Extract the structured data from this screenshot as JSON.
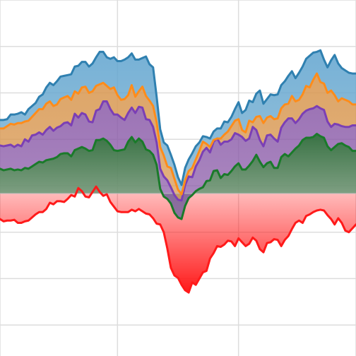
{
  "chart_data": {
    "type": "area",
    "title": "",
    "xlabel": "",
    "ylabel": "",
    "x": [
      0,
      1,
      2,
      3,
      4,
      5,
      6,
      7,
      8,
      9,
      10,
      11,
      12,
      13,
      14,
      15,
      16,
      17,
      18,
      19,
      20,
      21,
      22,
      23,
      24,
      25,
      26,
      27,
      28,
      29,
      30,
      31,
      32,
      33,
      34,
      35,
      36,
      37,
      38,
      39,
      40,
      41,
      42,
      43,
      44,
      45,
      46,
      47,
      48,
      49,
      50,
      51,
      52,
      53,
      54,
      55,
      56,
      57,
      58,
      59,
      60,
      61,
      62,
      63,
      64,
      65,
      66,
      67,
      68,
      69,
      70,
      71,
      72,
      73,
      74,
      75,
      76,
      77,
      78,
      79,
      80,
      81,
      82,
      83,
      84,
      85,
      86,
      87,
      88,
      89,
      90,
      91,
      92,
      93,
      94,
      95,
      96,
      97,
      98,
      99,
      100
    ],
    "xlim": [
      0,
      100
    ],
    "ylim": [
      -210,
      250
    ],
    "xgrid": [
      0,
      33,
      67,
      100
    ],
    "ygrid": [
      -230,
      -170,
      -110,
      -50,
      10,
      70,
      130,
      190,
      250
    ],
    "baseline": 0,
    "colors": {
      "s1": "#1a7a2a",
      "s2": "#7b3fb5",
      "s3": "#ff8c1a",
      "s4": "#2f80b0",
      "neg": "#ff1a1a",
      "grid": "#dddddd",
      "zero": "#bbbbbb"
    },
    "series": [
      {
        "values": [
          -33,
          -36,
          -35,
          -35,
          -34,
          -38,
          -38,
          -36,
          -35,
          -31,
          -27,
          -24,
          -24,
          -20,
          -12,
          -14,
          -10,
          -10,
          -11,
          -7,
          -2,
          -4,
          7,
          3,
          -4,
          -5,
          2,
          9,
          2,
          -3,
          -1,
          -11,
          -17,
          -23,
          -24,
          -24,
          -24,
          -21,
          -23,
          -20,
          -23,
          -26,
          -27,
          -32,
          -39,
          -40,
          -50,
          -71,
          -96,
          -106,
          -109,
          -118,
          -125,
          -128,
          -115,
          -118,
          -110,
          -102,
          -100,
          -84,
          -77,
          -68,
          -69,
          -66,
          -61,
          -62,
          -68,
          -58,
          -63,
          -68,
          -65,
          -57,
          -61,
          -72,
          -76,
          -64,
          -63,
          -59,
          -60,
          -68,
          -60,
          -55,
          -46,
          -38,
          -35,
          -38,
          -29,
          -27,
          -24,
          -22,
          -21,
          -22,
          -28,
          -33,
          -40,
          -32,
          -38,
          -48,
          -50,
          -45,
          -40
        ]
      },
      {
        "values": [
          32,
          30,
          31,
          32,
          30,
          31,
          30,
          33,
          32,
          35,
          38,
          41,
          40,
          43,
          44,
          45,
          47,
          51,
          52,
          52,
          48,
          56,
          58,
          60,
          58,
          55,
          56,
          69,
          69,
          71,
          68,
          63,
          56,
          55,
          56,
          57,
          67,
          73,
          66,
          71,
          67,
          57,
          55,
          50,
          37,
          6,
          -4,
          -7,
          -13,
          -25,
          -31,
          -33,
          -16,
          -6,
          -2,
          3,
          6,
          8,
          16,
          17,
          29,
          30,
          20,
          25,
          24,
          29,
          35,
          39,
          31,
          31,
          36,
          42,
          50,
          41,
          34,
          39,
          41,
          33,
          33,
          47,
          51,
          48,
          53,
          58,
          62,
          69,
          72,
          72,
          73,
          77,
          74,
          72,
          61,
          56,
          60,
          64,
          65,
          62,
          60,
          55,
          55
        ]
      },
      {
        "values": [
          62,
          61,
          62,
          63,
          60,
          63,
          61,
          70,
          67,
          75,
          76,
          79,
          76,
          82,
          86,
          81,
          85,
          87,
          91,
          92,
          88,
          103,
          98,
          104,
          102,
          93,
          92,
          107,
          109,
          119,
          119,
          109,
          102,
          102,
          98,
          95,
          104,
          111,
          104,
          112,
          111,
          96,
          95,
          86,
          66,
          32,
          22,
          17,
          8,
          -2,
          -8,
          -9,
          11,
          22,
          21,
          35,
          43,
          54,
          59,
          53,
          67,
          71,
          63,
          67,
          67,
          70,
          78,
          76,
          73,
          68,
          71,
          86,
          82,
          69,
          61,
          75,
          76,
          71,
          67,
          85,
          92,
          97,
          97,
          91,
          96,
          103,
          107,
          109,
          110,
          113,
          110,
          108,
          93,
          86,
          90,
          89,
          87,
          86,
          86,
          88,
          88
        ]
      },
      {
        "values": [
          84,
          84,
          87,
          90,
          89,
          91,
          91,
          93,
          94,
          99,
          104,
          109,
          109,
          116,
          119,
          113,
          115,
          122,
          124,
          126,
          121,
          132,
          129,
          137,
          138,
          130,
          132,
          139,
          141,
          143,
          139,
          135,
          137,
          127,
          121,
          122,
          127,
          140,
          125,
          132,
          138,
          126,
          120,
          113,
          92,
          60,
          49,
          35,
          33,
          19,
          5,
          -1,
          17,
          29,
          33,
          44,
          55,
          67,
          64,
          60,
          69,
          71,
          71,
          76,
          80,
          87,
          94,
          96,
          82,
          79,
          94,
          92,
          99,
          100,
          91,
          98,
          100,
          96,
          97,
          110,
          115,
          116,
          126,
          119,
          121,
          128,
          139,
          137,
          147,
          155,
          144,
          142,
          130,
          133,
          127,
          119,
          123,
          121,
          119,
          115,
          115
        ]
      },
      {
        "values": [
          95,
          95,
          96,
          102,
          102,
          103,
          105,
          102,
          109,
          113,
          117,
          125,
          128,
          137,
          143,
          140,
          145,
          151,
          152,
          153,
          154,
          164,
          165,
          170,
          170,
          164,
          168,
          176,
          183,
          183,
          176,
          174,
          176,
          171,
          171,
          173,
          176,
          181,
          173,
          173,
          175,
          177,
          167,
          163,
          125,
          83,
          66,
          62,
          50,
          37,
          21,
          11,
          33,
          44,
          52,
          61,
          66,
          74,
          73,
          71,
          80,
          84,
          84,
          93,
          92,
          99,
          109,
          118,
          104,
          108,
          120,
          118,
          129,
          133,
          116,
          122,
          128,
          127,
          128,
          140,
          145,
          152,
          158,
          149,
          156,
          164,
          174,
          178,
          182,
          183,
          185,
          173,
          163,
          172,
          179,
          168,
          162,
          159,
          156,
          155,
          155
        ]
      }
    ]
  }
}
